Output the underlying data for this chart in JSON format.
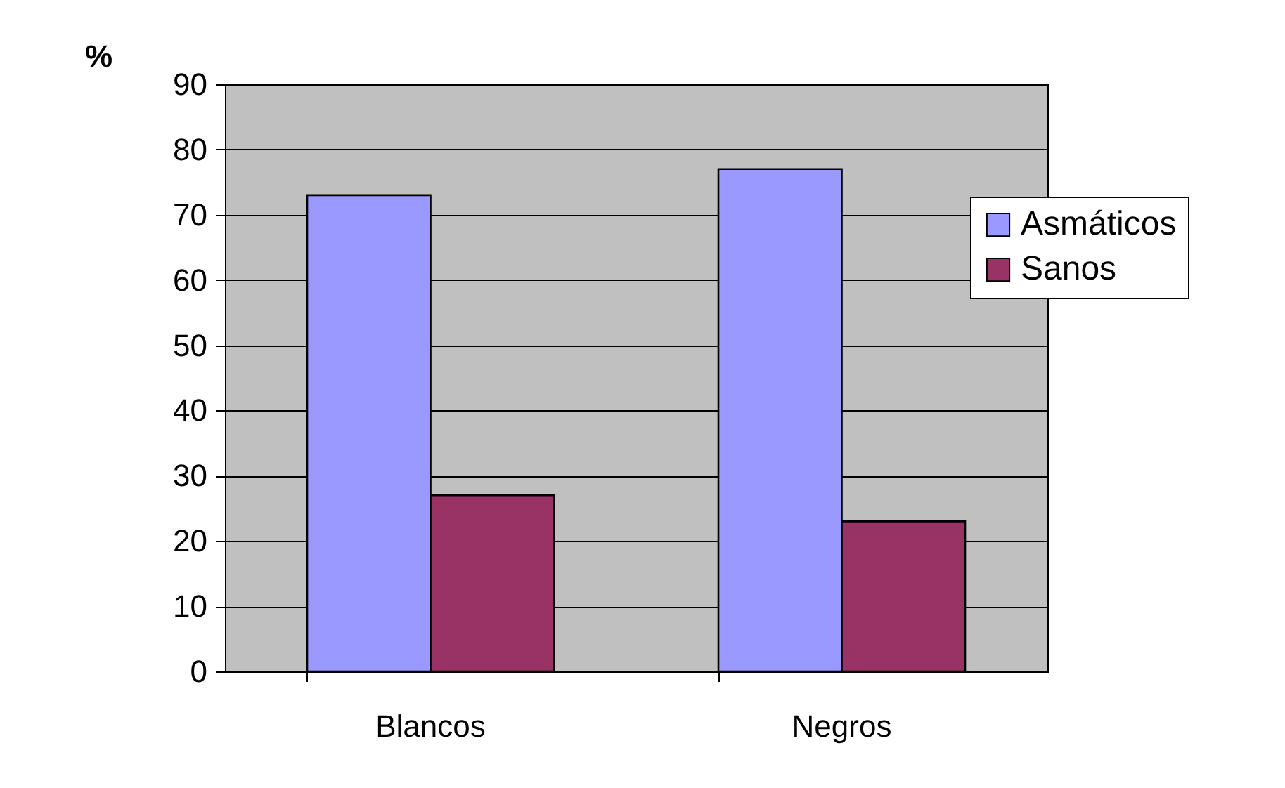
{
  "chart_data": {
    "type": "bar",
    "ylabel": "%",
    "categories": [
      "Blancos",
      "Negros"
    ],
    "series": [
      {
        "name": "Asmáticos",
        "color": "#9999ff",
        "values": [
          73,
          77
        ]
      },
      {
        "name": "Sanos",
        "color": "#993366",
        "values": [
          27,
          23
        ]
      }
    ],
    "ylim": [
      0,
      90
    ],
    "yticks": [
      0,
      10,
      20,
      30,
      40,
      50,
      60,
      70,
      80,
      90
    ],
    "grid": "y",
    "legend": "right"
  }
}
